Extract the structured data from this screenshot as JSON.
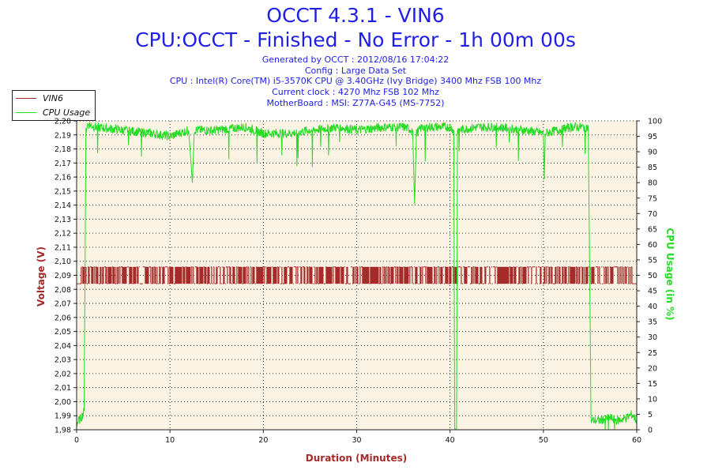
{
  "header": {
    "title": "OCCT 4.3.1 - VIN6",
    "subtitle": "CPU:OCCT - Finished - No Error - 1h 00m 00s",
    "info_lines": [
      "Generated by OCCT : 2012/08/16 17:04:22",
      "Config : Large Data Set",
      "CPU : Intel(R) Core(TM) i5-3570K CPU @ 3.40GHz (Ivy Bridge) 3400 Mhz FSB 100 Mhz",
      "Current clock : 4270 Mhz FSB 102 Mhz",
      "MotherBoard : MSI: Z77A-G45 (MS-7752)"
    ]
  },
  "colors": {
    "voltage": "#a52a2a",
    "cpu": "#22dd22",
    "plot_bg": "#fbf3e4",
    "grid": "#333333"
  },
  "chart_data": {
    "type": "line",
    "xlabel": "Duration (Minutes)",
    "ylabel": "Voltage (V)",
    "y2label": "CPU Usage (in %)",
    "x_range": [
      0,
      60
    ],
    "x_ticks": [
      0,
      10,
      20,
      30,
      40,
      50,
      60
    ],
    "ylim": [
      1.98,
      2.2
    ],
    "y_ticks": [
      "1,98",
      "1,99",
      "2,00",
      "2,01",
      "2,02",
      "2,03",
      "2,04",
      "2,05",
      "2,06",
      "2,07",
      "2,08",
      "2,09",
      "2,10",
      "2,11",
      "2,12",
      "2,13",
      "2,14",
      "2,15",
      "2,16",
      "2,17",
      "2,18",
      "2,19",
      "2,20"
    ],
    "y2lim": [
      0,
      100
    ],
    "y2_ticks": [
      0,
      5,
      10,
      15,
      20,
      25,
      30,
      35,
      40,
      45,
      50,
      55,
      60,
      65,
      70,
      75,
      80,
      85,
      90,
      95,
      100
    ],
    "grid": true,
    "legend_position": "top-left",
    "series": [
      {
        "name": "VIN6",
        "axis": "left",
        "description_values": {
          "low": 2.084,
          "high": 2.096,
          "active_range": [
            0.5,
            59.5
          ],
          "final_value": 2.084
        }
      },
      {
        "name": "CPU Usage",
        "axis": "right",
        "points": [
          [
            0,
            2
          ],
          [
            0.5,
            4
          ],
          [
            0.8,
            6
          ],
          [
            1.0,
            97
          ],
          [
            1.2,
            99
          ],
          [
            2,
            98
          ],
          [
            5,
            97
          ],
          [
            8,
            96
          ],
          [
            10,
            95
          ],
          [
            12,
            97
          ],
          [
            12.4,
            80
          ],
          [
            12.6,
            97
          ],
          [
            15,
            97
          ],
          [
            18,
            98
          ],
          [
            20,
            96
          ],
          [
            23,
            96
          ],
          [
            25,
            97
          ],
          [
            28,
            98
          ],
          [
            30,
            97
          ],
          [
            33,
            98
          ],
          [
            35,
            98
          ],
          [
            36.0,
            97
          ],
          [
            36.2,
            73
          ],
          [
            36.4,
            96
          ],
          [
            37,
            98
          ],
          [
            40,
            98
          ],
          [
            40.4,
            97
          ],
          [
            40.5,
            0
          ],
          [
            40.7,
            0
          ],
          [
            40.8,
            97
          ],
          [
            43,
            98
          ],
          [
            45,
            98
          ],
          [
            48,
            97
          ],
          [
            50,
            96
          ],
          [
            50.1,
            81
          ],
          [
            50.2,
            96
          ],
          [
            53,
            98
          ],
          [
            54.8,
            98
          ],
          [
            55.0,
            40
          ],
          [
            55.1,
            3
          ],
          [
            56,
            3
          ],
          [
            57,
            4
          ],
          [
            58,
            3
          ],
          [
            59,
            4
          ],
          [
            59.5,
            5
          ],
          [
            60,
            3
          ]
        ]
      }
    ]
  }
}
